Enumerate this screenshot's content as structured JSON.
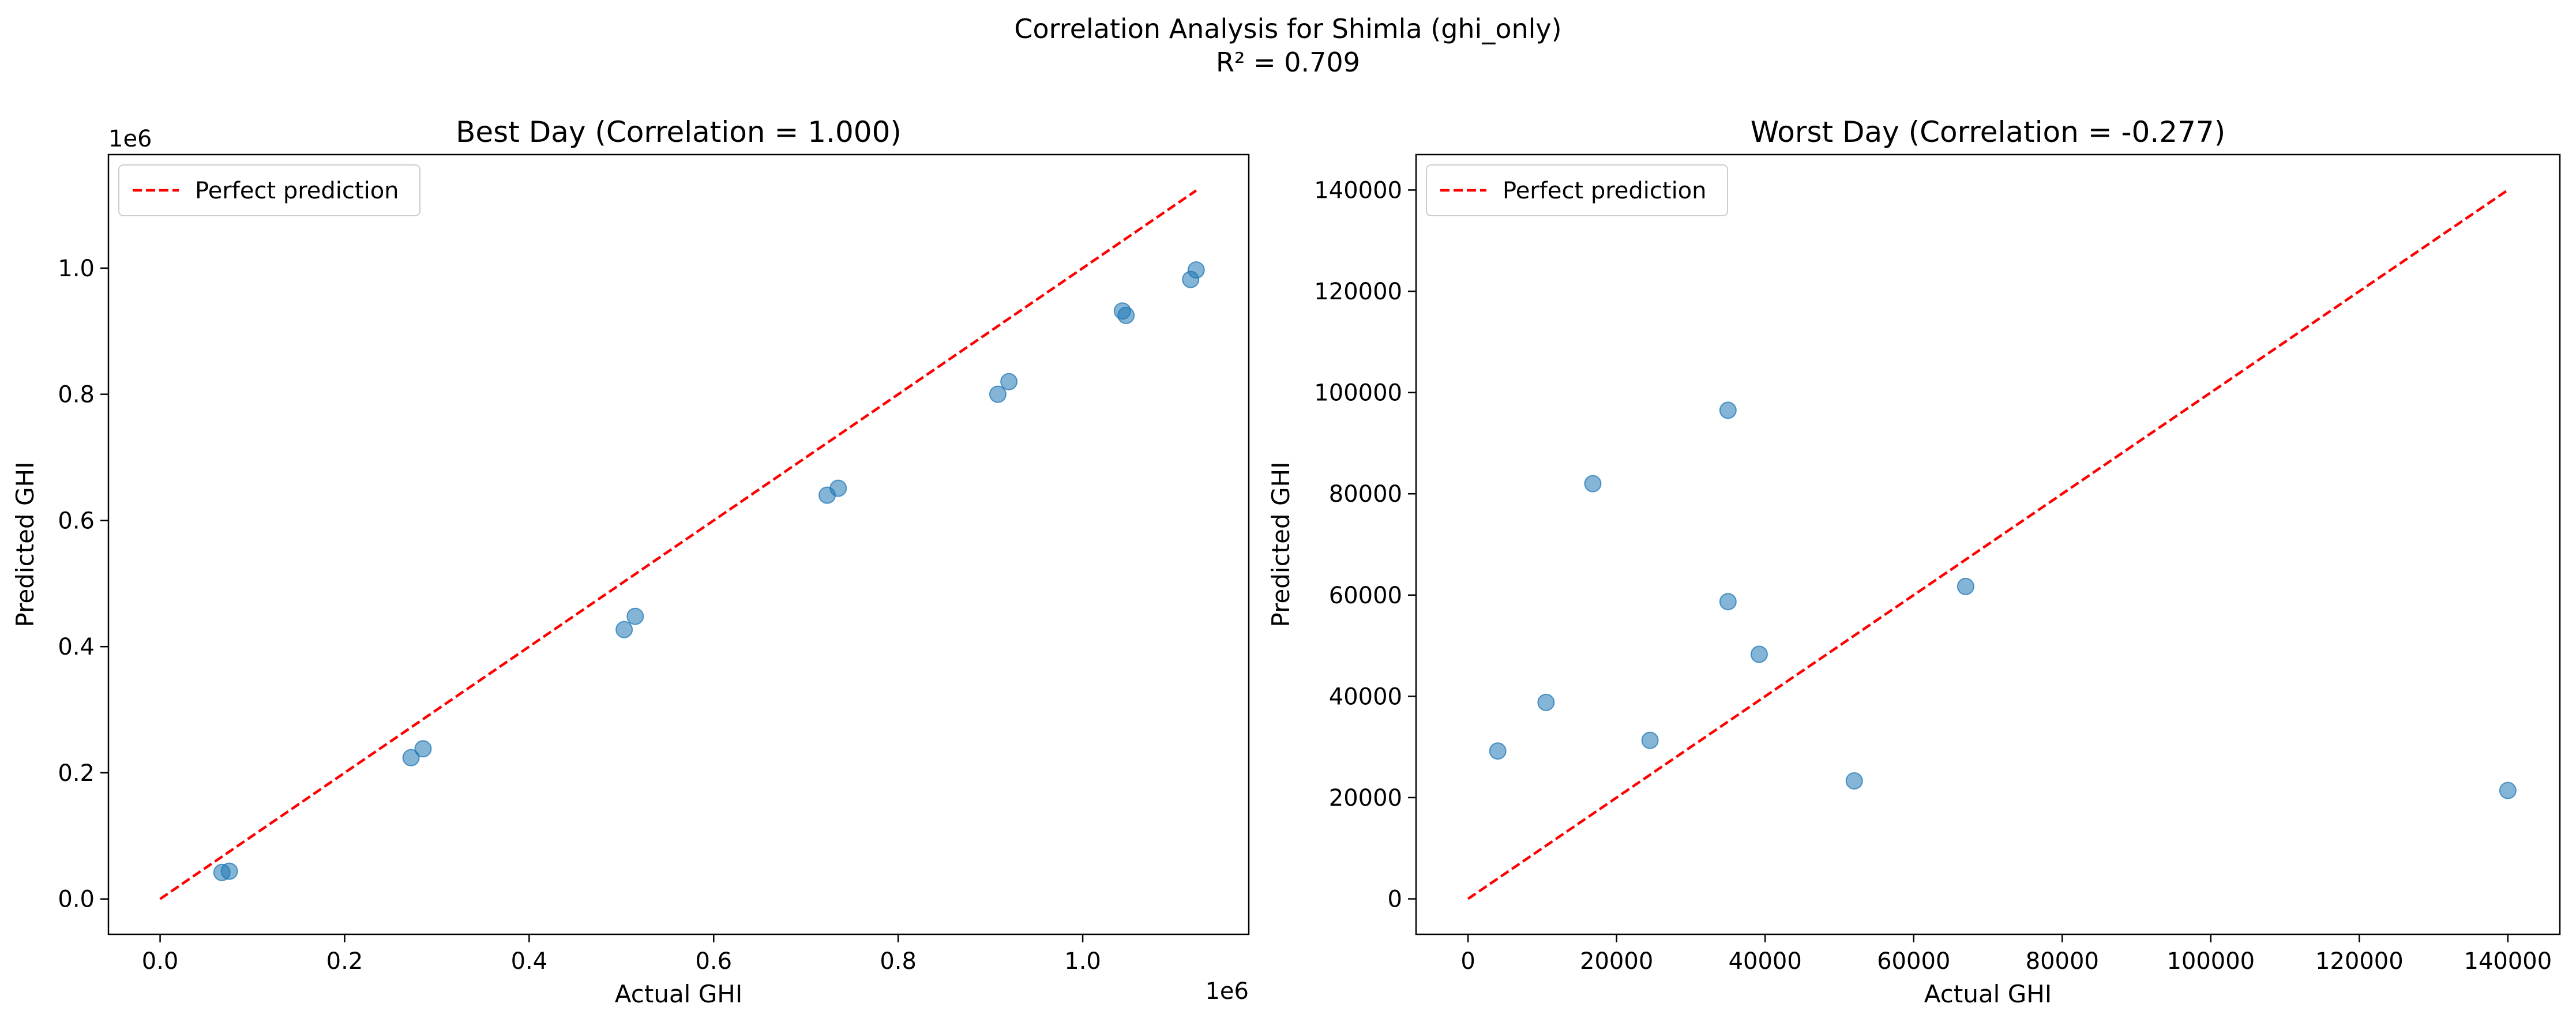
{
  "figure": {
    "title": "Correlation Analysis for Shimla (ghi_only)",
    "subtitle": "R² = 0.709"
  },
  "colors": {
    "points": "#1f77b4",
    "perfect_line": "#ff0000"
  },
  "chart_data": [
    {
      "type": "scatter",
      "title": "Best Day (Correlation = 1.000)",
      "xlabel": "Actual GHI",
      "ylabel": "Predicted GHI",
      "x_offset_label": "1e6",
      "y_offset_label": "1e6",
      "xlim": [
        -0.056,
        1.18
      ],
      "ylim": [
        -0.056,
        1.18
      ],
      "x_ticks": [
        0.0,
        0.2,
        0.4,
        0.6,
        0.8,
        1.0
      ],
      "x_tick_labels": [
        "0.0",
        "0.2",
        "0.4",
        "0.6",
        "0.8",
        "1.0"
      ],
      "y_ticks": [
        0.0,
        0.2,
        0.4,
        0.6,
        0.8,
        1.0
      ],
      "y_tick_labels": [
        "0.0",
        "0.2",
        "0.4",
        "0.6",
        "0.8",
        "1.0"
      ],
      "grid": false,
      "legend_position": "top-left",
      "series": [
        {
          "name": "",
          "points": [
            {
              "x": 0.067,
              "y": 0.042
            },
            {
              "x": 0.075,
              "y": 0.044
            },
            {
              "x": 0.272,
              "y": 0.224
            },
            {
              "x": 0.285,
              "y": 0.238
            },
            {
              "x": 0.503,
              "y": 0.427
            },
            {
              "x": 0.515,
              "y": 0.448
            },
            {
              "x": 0.723,
              "y": 0.64
            },
            {
              "x": 0.735,
              "y": 0.651
            },
            {
              "x": 0.908,
              "y": 0.8
            },
            {
              "x": 0.92,
              "y": 0.82
            },
            {
              "x": 1.043,
              "y": 0.932
            },
            {
              "x": 1.047,
              "y": 0.925
            },
            {
              "x": 1.117,
              "y": 0.982
            },
            {
              "x": 1.123,
              "y": 0.997
            }
          ]
        }
      ],
      "reference_line": {
        "name": "Perfect prediction",
        "from": [
          0,
          0
        ],
        "to": [
          1.123,
          1.123
        ]
      }
    },
    {
      "type": "scatter",
      "title": "Worst Day (Correlation = -0.277)",
      "xlabel": "Actual GHI",
      "ylabel": "Predicted GHI",
      "xlim": [
        -7000,
        147000
      ],
      "ylim": [
        -7000,
        147000
      ],
      "x_ticks": [
        0,
        20000,
        40000,
        60000,
        80000,
        100000,
        120000,
        140000
      ],
      "x_tick_labels": [
        "0",
        "20000",
        "40000",
        "60000",
        "80000",
        "100000",
        "120000",
        "140000"
      ],
      "y_ticks": [
        0,
        20000,
        40000,
        60000,
        80000,
        100000,
        120000,
        140000
      ],
      "y_tick_labels": [
        "0",
        "20000",
        "40000",
        "60000",
        "80000",
        "100000",
        "120000",
        "140000"
      ],
      "grid": false,
      "legend_position": "top-left",
      "series": [
        {
          "name": "",
          "points": [
            {
              "x": 4000,
              "y": 29200
            },
            {
              "x": 10500,
              "y": 38800
            },
            {
              "x": 16800,
              "y": 82000
            },
            {
              "x": 24500,
              "y": 31300
            },
            {
              "x": 35000,
              "y": 96500
            },
            {
              "x": 35000,
              "y": 58700
            },
            {
              "x": 39200,
              "y": 48300
            },
            {
              "x": 52000,
              "y": 23300
            },
            {
              "x": 67000,
              "y": 61700
            },
            {
              "x": 140000,
              "y": 21400
            }
          ]
        }
      ],
      "reference_line": {
        "name": "Perfect prediction",
        "from": [
          0,
          0
        ],
        "to": [
          140000,
          140000
        ]
      }
    }
  ]
}
